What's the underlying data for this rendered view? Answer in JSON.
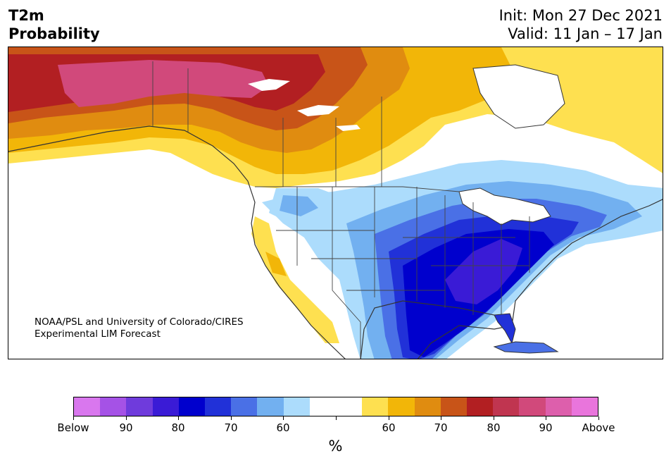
{
  "title": {
    "line1": "T2m",
    "line2": "Probability"
  },
  "dates": {
    "init": "Init: Mon 27 Dec 2021",
    "valid": "Valid: 11 Jan – 17 Jan"
  },
  "credit": {
    "line1": "NOAA/PSL and University of Colorado/CIRES",
    "line2": "Experimental LIM Forecast"
  },
  "colorbar": {
    "colors": [
      "#d977ee",
      "#a552e6",
      "#6f3bdc",
      "#3a1bd6",
      "#0000cd",
      "#2131d8",
      "#4a70e6",
      "#72b0f0",
      "#acdcfc",
      "#ffffff",
      "#ffffff",
      "#fee050",
      "#f2b608",
      "#e08c10",
      "#c85418",
      "#b21f22",
      "#c03550",
      "#d1497b",
      "#dd5fac",
      "#e975dc"
    ],
    "labels": [
      "Below",
      "90",
      "80",
      "70",
      "60",
      "",
      "60",
      "70",
      "80",
      "90",
      "Above"
    ],
    "unit": "%"
  },
  "map": {
    "land_color": "#ffffff",
    "water_color": "#ffffff",
    "border_color": "#333333"
  }
}
